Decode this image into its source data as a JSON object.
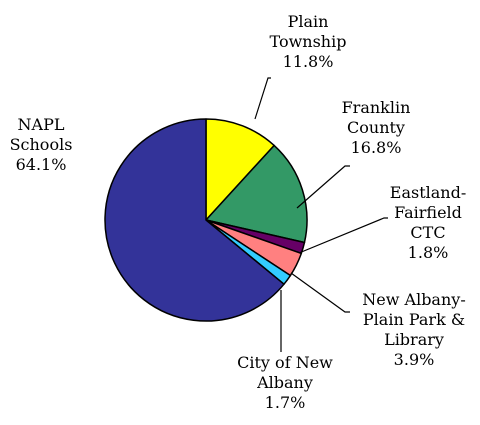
{
  "chart_data": {
    "type": "pie",
    "start_angle_deg": 90,
    "direction": "clockwise",
    "legend": "none",
    "slices": [
      {
        "label_lines": [
          "Plain",
          "Township"
        ],
        "value_label": "11.8%",
        "value": 11.8,
        "color": "#FFFF00"
      },
      {
        "label_lines": [
          "Franklin",
          "County"
        ],
        "value_label": "16.8%",
        "value": 16.8,
        "color": "#339966"
      },
      {
        "label_lines": [
          "Eastland-",
          "Fairfield",
          "CTC"
        ],
        "value_label": "1.8%",
        "value": 1.8,
        "color": "#660066"
      },
      {
        "label_lines": [
          "New Albany-",
          "Plain Park &",
          "Library"
        ],
        "value_label": "3.9%",
        "value": 3.9,
        "color": "#FF8080"
      },
      {
        "label_lines": [
          "City of New",
          "Albany"
        ],
        "value_label": "1.7%",
        "value": 1.7,
        "color": "#33CCFF"
      },
      {
        "label_lines": [
          "NAPL",
          "Schools"
        ],
        "value_label": "64.1%",
        "value": 64.1,
        "color": "#333399"
      }
    ]
  }
}
